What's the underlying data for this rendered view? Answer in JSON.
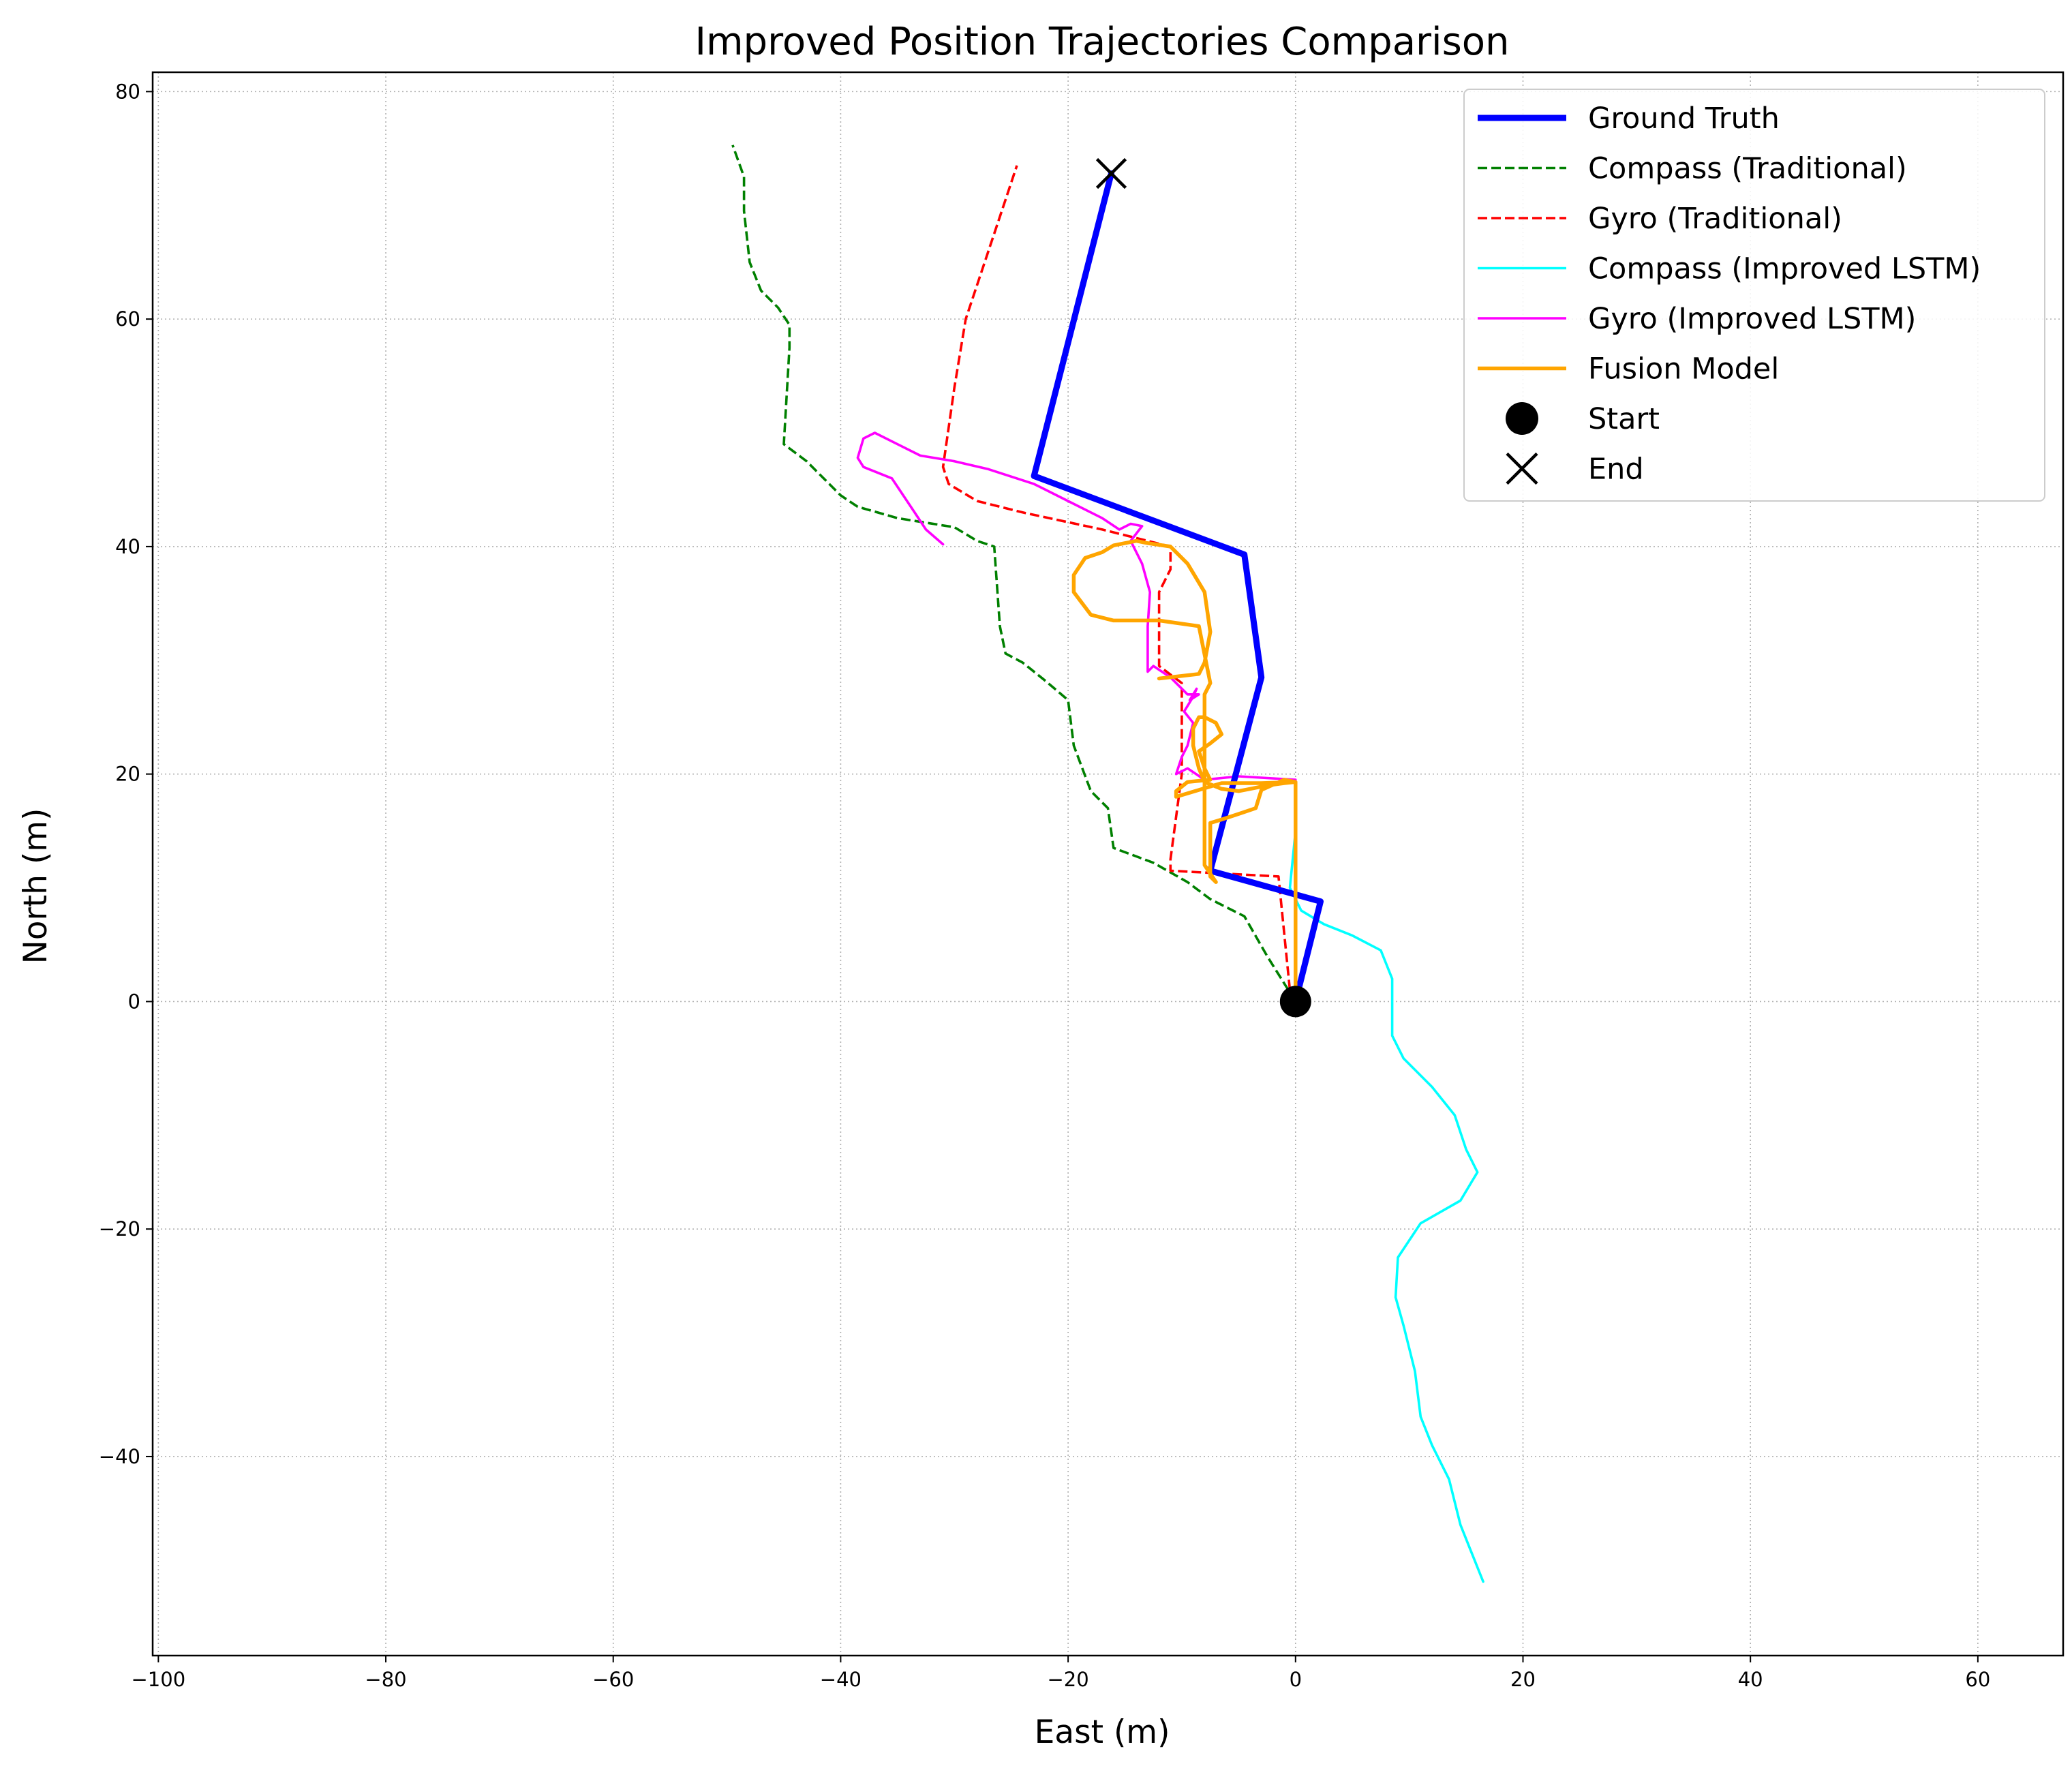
{
  "chart_data": {
    "type": "line",
    "title": "Improved Position Trajectories Comparison",
    "xlabel": "East (m)",
    "ylabel": "North (m)",
    "xlim": [
      -100.5,
      67.5
    ],
    "ylim": [
      -57.5,
      81.7
    ],
    "xticks": [
      -100,
      -80,
      -60,
      -40,
      -20,
      0,
      20,
      40,
      60
    ],
    "yticks": [
      -40,
      -20,
      0,
      20,
      40,
      60,
      80
    ],
    "grid": true,
    "legend_position": "top-right",
    "series": [
      {
        "name": "Ground Truth",
        "color": "#0000ff",
        "style": "solid",
        "x": [
          0,
          2.2,
          -7.5,
          -3,
          -4.5,
          -23,
          -16.2
        ],
        "y": [
          0,
          8.8,
          11.5,
          28.5,
          39.3,
          46.2,
          72.8
        ]
      },
      {
        "name": "Compass (Traditional)",
        "color": "#008000",
        "style": "dashed",
        "x": [
          0,
          -2.5,
          -4.5,
          -7.5,
          -9.5,
          -12.5,
          -16,
          -16.5,
          -18,
          -19.5,
          -20,
          -22,
          -24,
          -25.5,
          -26,
          -26.5,
          -28,
          -30,
          -35,
          -38.5,
          -40,
          -43,
          -45,
          -44.5,
          -44.5,
          -45.5,
          -47,
          -48,
          -48.5,
          -48.5,
          -49.5
        ],
        "y": [
          0,
          4,
          7.5,
          9,
          10.5,
          12.2,
          13.5,
          17,
          18.5,
          22.5,
          26.5,
          28.2,
          29.8,
          30.6,
          33,
          40,
          40.5,
          41.7,
          42.5,
          43.5,
          44.5,
          47.5,
          49,
          57.5,
          59.5,
          61,
          62.5,
          65,
          69.5,
          72.5,
          75.3
        ]
      },
      {
        "name": "Gyro (Traditional)",
        "color": "#ff0000",
        "style": "dashed",
        "x": [
          0,
          -0.5,
          -1.5,
          -11,
          -11,
          -10,
          -10,
          -12,
          -12,
          -11,
          -11,
          -13,
          -17,
          -24,
          -28,
          -30.5,
          -31,
          -30,
          -29,
          -26,
          -24.5
        ],
        "y": [
          0,
          1,
          11,
          11.5,
          12.5,
          20,
          28,
          29.5,
          36,
          38,
          40,
          40.5,
          41.5,
          43,
          44,
          45.5,
          47,
          54,
          60,
          69,
          73.5
        ]
      },
      {
        "name": "Compass (Improved LSTM)",
        "color": "#00ffff",
        "style": "solid",
        "x": [
          0,
          0,
          -0.5,
          0.5,
          2.5,
          5,
          7.5,
          8.5,
          8.5,
          9.5,
          12,
          14,
          15,
          16,
          14.5,
          11,
          9,
          8.8,
          9.5,
          10.5,
          11,
          12,
          13.5,
          14.5,
          15.5,
          16.5
        ],
        "y": [
          19,
          15,
          10,
          8,
          6.8,
          5.8,
          4.5,
          2,
          -3,
          -5,
          -7.5,
          -10,
          -13,
          -15,
          -17.5,
          -19.5,
          -22.5,
          -26,
          -28.5,
          -32.5,
          -36.5,
          -39,
          -42,
          -46,
          -48.5,
          -51
        ]
      },
      {
        "name": "Gyro (Improved LSTM)",
        "color": "#ff00ff",
        "style": "solid",
        "x": [
          0,
          -5,
          -8,
          -9.5,
          -10.5,
          -10,
          -9.5,
          -9,
          -9.8,
          -9,
          -8.7,
          -9.3,
          -8.5,
          -9.5,
          -11,
          -12.5,
          -13,
          -13,
          -12.8,
          -13.5,
          -14.5,
          -13.5,
          -14.5,
          -15.5,
          -17,
          -20,
          -23,
          -27,
          -30,
          -33,
          -35,
          -37,
          -38,
          -38.5,
          -38,
          -37,
          -35.5,
          -34.5,
          -33.5,
          -32.5,
          -31
        ],
        "y": [
          19.5,
          19.8,
          19.5,
          20.5,
          20,
          21.5,
          22.5,
          24.5,
          25.5,
          26.8,
          27.5,
          26.5,
          27,
          27,
          28.5,
          29.5,
          29,
          33,
          36,
          38.5,
          40.5,
          41.8,
          42,
          41.5,
          42.5,
          44,
          45.5,
          46.8,
          47.5,
          48,
          49,
          50,
          49.5,
          47.8,
          47,
          46.6,
          46,
          44.5,
          43,
          41.5,
          40.2
        ]
      },
      {
        "name": "Fusion Model",
        "color": "#ffa500",
        "style": "solid",
        "x": [
          0,
          0,
          -1,
          -2.5,
          -4,
          -5,
          -6.5,
          -8,
          -8.5,
          -9,
          -9,
          -8.5,
          -8,
          -7,
          -6.5,
          -7.5,
          -8.5,
          -8,
          -7.5,
          -9.5,
          -10.5,
          -10.5,
          -6.5,
          -3,
          0,
          -1,
          -3,
          -3.5,
          -5,
          -6.5,
          -7.5,
          -7.5,
          -7,
          -8,
          -8,
          -7.5,
          -8.5,
          -12,
          -16,
          -18,
          -19.5,
          -19.5,
          -18.5,
          -17,
          -16,
          -14,
          -13,
          -11,
          -9.5,
          -8,
          -7.5,
          -8,
          -8.5,
          -12
        ],
        "y": [
          0,
          19.3,
          19.2,
          19,
          18.7,
          18.5,
          18.7,
          19.3,
          20.5,
          22.5,
          24,
          25,
          25,
          24.5,
          23.5,
          22.7,
          22,
          20.5,
          19.5,
          19.3,
          18.5,
          18,
          19.2,
          19.2,
          19.3,
          19.5,
          18.6,
          17,
          16.5,
          16,
          15.7,
          11,
          10.5,
          12,
          27,
          28,
          33,
          33.5,
          33.5,
          34,
          36,
          37.5,
          39,
          39.5,
          40.1,
          40.5,
          40.3,
          40,
          38.5,
          36,
          32.5,
          29.8,
          28.8,
          28.4
        ]
      },
      {
        "name": "Start",
        "marker": "circle",
        "color": "#000000",
        "x": [
          0
        ],
        "y": [
          0
        ]
      },
      {
        "name": "End",
        "marker": "x",
        "color": "#000000",
        "x": [
          -16.2
        ],
        "y": [
          72.8
        ]
      }
    ]
  }
}
